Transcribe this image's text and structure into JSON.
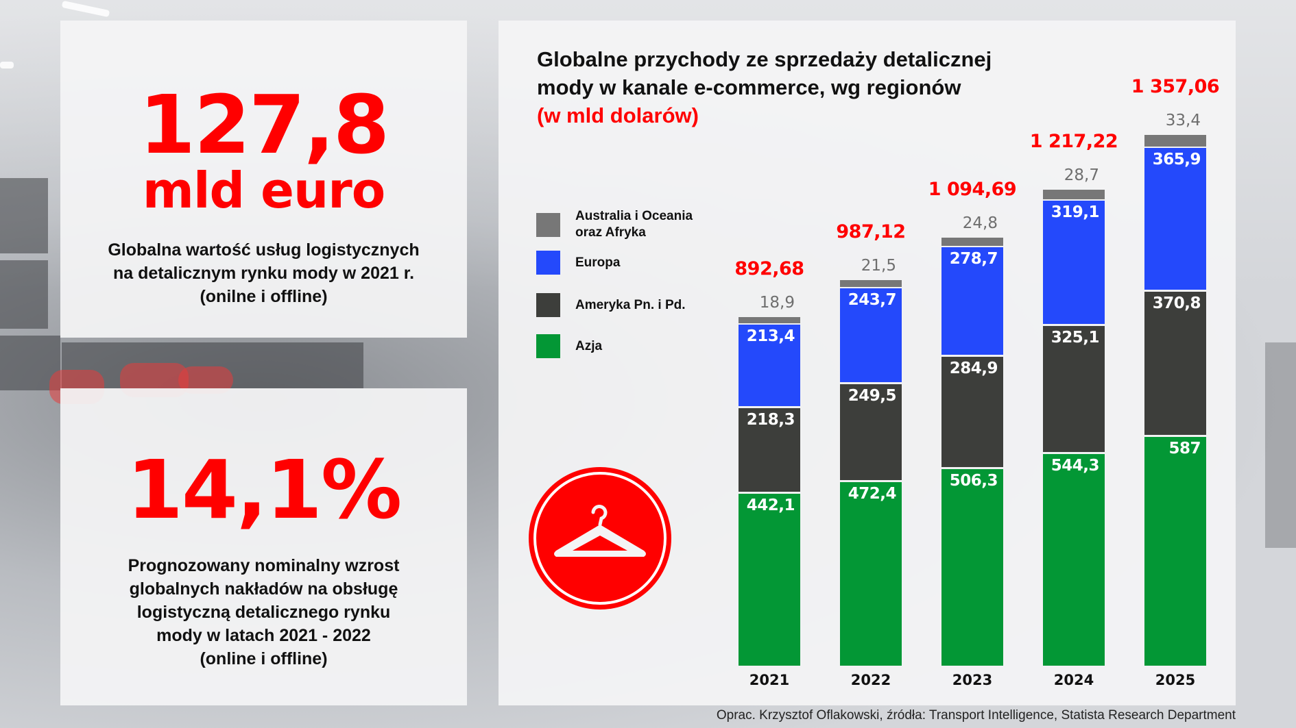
{
  "left_top": {
    "value": "127,8",
    "unit": "mld euro",
    "description_lines": [
      "Globalna wartość usług logistycznych",
      "na  detalicznym rynku mody w 2021 r.",
      "(onilne i offline)"
    ]
  },
  "left_bottom": {
    "value": "14,1%",
    "description_lines": [
      "Prognozowany nominalny wzrost",
      "globalnych nakładów na obsługę",
      "logistyczną detalicznego rynku",
      "mody w latach 2021 - 2022",
      "(online i offline)"
    ]
  },
  "chart": {
    "title_lines": [
      "Globalne przychody ze sprzedaży detalicznej",
      "mody w kanale e-commerce, wg regionów"
    ],
    "subtitle": "(w mld dolarów)",
    "legend": [
      {
        "label_line1": "Australia i Oceania",
        "label_line2": "oraz Afryka",
        "color": "#777777",
        "icon": "gray-swatch"
      },
      {
        "label_line1": "Europa",
        "label_line2": "",
        "color": "#2449fb",
        "icon": "blue-swatch"
      },
      {
        "label_line1": "Ameryka Pn. i Pd.",
        "label_line2": "",
        "color": "#3d3e3b",
        "icon": "dark-swatch"
      },
      {
        "label_line1": "Azja",
        "label_line2": "",
        "color": "#039735",
        "icon": "green-swatch"
      }
    ],
    "badge_icon": "clothes-hanger-icon",
    "badge_color": "#ff0000"
  },
  "chart_data": {
    "type": "bar",
    "stacked": true,
    "title": "Globalne przychody ze sprzedaży detalicznej mody w kanale e-commerce, wg regionów",
    "subtitle": "(w mld dolarów)",
    "xlabel": "",
    "ylabel": "",
    "categories": [
      "2021",
      "2022",
      "2023",
      "2024",
      "2025"
    ],
    "series": [
      {
        "name": "Azja",
        "color": "#039735",
        "values": [
          442.1,
          472.4,
          506.3,
          544.3,
          587
        ]
      },
      {
        "name": "Ameryka Pn. i Pd.",
        "color": "#3d3e3b",
        "values": [
          218.3,
          249.5,
          284.9,
          325.1,
          370.8
        ]
      },
      {
        "name": "Europa",
        "color": "#2449fb",
        "values": [
          213.4,
          243.7,
          278.7,
          319.1,
          365.9
        ]
      },
      {
        "name": "Australia i Oceania oraz Afryka",
        "color": "#777777",
        "values": [
          18.9,
          21.5,
          24.8,
          28.7,
          33.4
        ]
      }
    ],
    "series_labels": [
      [
        "442,1",
        "472,4",
        "506,3",
        "544,3",
        "587"
      ],
      [
        "218,3",
        "249,5",
        "284,9",
        "325,1",
        "370,8"
      ],
      [
        "213,4",
        "243,7",
        "278,7",
        "319,1",
        "365,9"
      ],
      [
        "18,9",
        "21,5",
        "24,8",
        "28,7",
        "33,4"
      ]
    ],
    "totals": [
      892.68,
      987.12,
      1094.69,
      1217.22,
      1357.06
    ],
    "total_labels": [
      "892,68",
      "987,12",
      "1 094,69",
      "1 217,22",
      "1 357,06"
    ],
    "legend_position": "left",
    "grid": false,
    "ylim": [
      0,
      1400
    ]
  },
  "footer": {
    "source": "Oprac. Krzysztof Oflakowski, źródła: Transport Intelligence, Statista Research Department"
  }
}
